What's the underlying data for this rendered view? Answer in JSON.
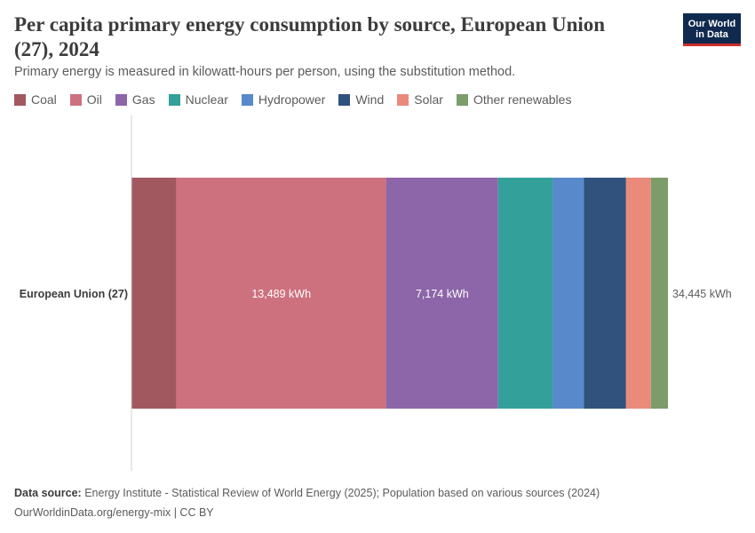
{
  "header": {
    "title": "Per capita primary energy consumption by source, European Union (27), 2024",
    "subtitle": "Primary energy is measured in kilowatt-hours per person, using the substitution method.",
    "logo_line1": "Our World",
    "logo_line2": "in Data"
  },
  "chart_data": {
    "type": "bar",
    "orientation": "horizontal",
    "stacked": true,
    "categories": [
      "European Union (27)"
    ],
    "series": [
      {
        "name": "Coal",
        "color": "#a2585f",
        "values": [
          2876
        ]
      },
      {
        "name": "Oil",
        "color": "#cd717f",
        "values": [
          13489
        ]
      },
      {
        "name": "Gas",
        "color": "#8c66a9",
        "values": [
          7174
        ]
      },
      {
        "name": "Nuclear",
        "color": "#33a09a",
        "values": [
          3515
        ]
      },
      {
        "name": "Hydropower",
        "color": "#5889cb",
        "values": [
          2000
        ]
      },
      {
        "name": "Wind",
        "color": "#30527c",
        "values": [
          2700
        ]
      },
      {
        "name": "Solar",
        "color": "#e98a7b",
        "values": [
          1600
        ]
      },
      {
        "name": "Other renewables",
        "color": "#7c9c6a",
        "values": [
          1091
        ]
      }
    ],
    "segment_labels": {
      "Oil": "13,489 kWh",
      "Gas": "7,174 kWh"
    },
    "total_label": "34,445 kWh",
    "total": 34445,
    "legend_position": "top-left",
    "grid": false
  },
  "footer": {
    "source_label": "Data source:",
    "source_text": "Energy Institute - Statistical Review of World Energy (2025); Population based on various sources (2024)",
    "url_text": "OurWorldinData.org/energy-mix | CC BY"
  }
}
